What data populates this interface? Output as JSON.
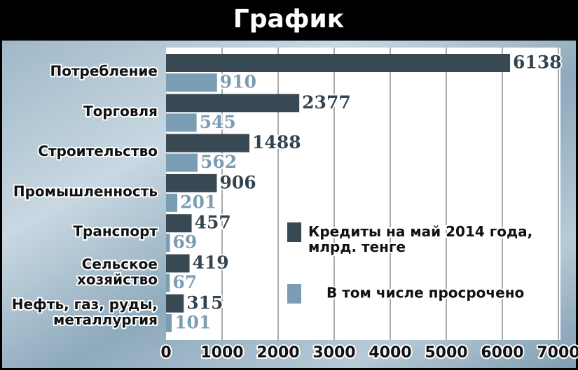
{
  "chart_data": {
    "type": "bar",
    "orientation": "horizontal",
    "title": "График",
    "categories": [
      "Потребление",
      "Торговля",
      "Строительство",
      "Промышленность",
      "Транспорт",
      "Сельское\nхозяйство",
      "Нефть, газ, руды,\nметаллургия"
    ],
    "series": [
      {
        "name": "Кредиты на май 2014 года,\nмлрд. тенге",
        "color": "#394953",
        "values": [
          6138,
          2377,
          1488,
          906,
          457,
          419,
          315
        ]
      },
      {
        "name": "В том числе просрочено",
        "color": "#7b9db3",
        "values": [
          910,
          545,
          562,
          201,
          69,
          67,
          101
        ]
      }
    ],
    "xlim": [
      0,
      7000
    ],
    "xticks": [
      0,
      1000,
      2000,
      3000,
      4000,
      5000,
      6000,
      7000
    ],
    "grid": true
  }
}
